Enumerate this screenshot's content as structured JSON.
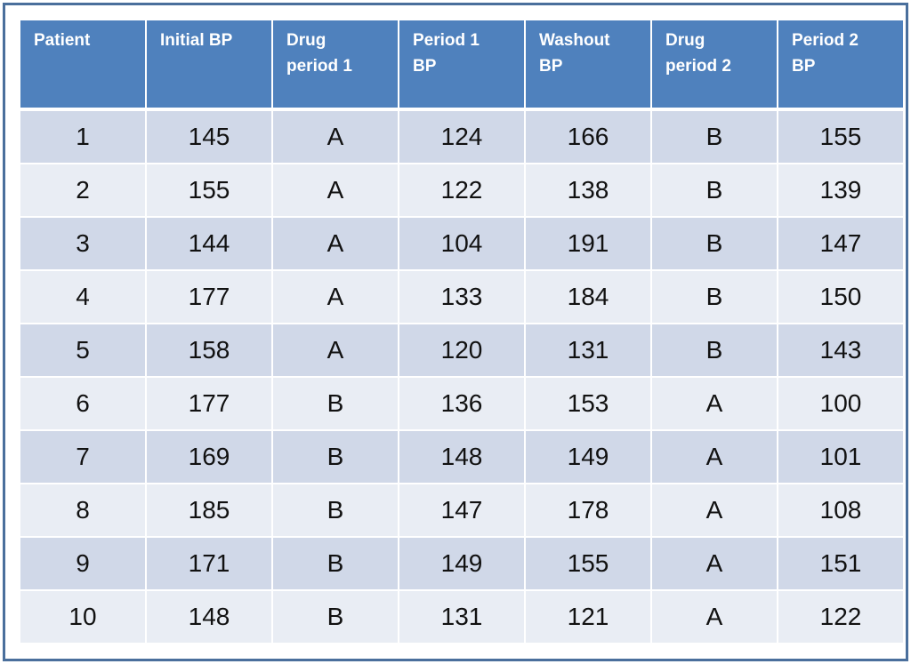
{
  "table": {
    "headers": [
      "Patient",
      "Initial BP",
      "Drug\nperiod 1",
      "Period 1\nBP",
      "Washout\nBP",
      "Drug\nperiod 2",
      "Period 2\nBP"
    ],
    "rows": [
      [
        "1",
        "145",
        "A",
        "124",
        "166",
        "B",
        "155"
      ],
      [
        "2",
        "155",
        "A",
        "122",
        "138",
        "B",
        "139"
      ],
      [
        "3",
        "144",
        "A",
        "104",
        "191",
        "B",
        "147"
      ],
      [
        "4",
        "177",
        "A",
        "133",
        "184",
        "B",
        "150"
      ],
      [
        "5",
        "158",
        "A",
        "120",
        "131",
        "B",
        "143"
      ],
      [
        "6",
        "177",
        "B",
        "136",
        "153",
        "A",
        "100"
      ],
      [
        "7",
        "169",
        "B",
        "148",
        "149",
        "A",
        "101"
      ],
      [
        "8",
        "185",
        "B",
        "147",
        "178",
        "A",
        "108"
      ],
      [
        "9",
        "171",
        "B",
        "149",
        "155",
        "A",
        "151"
      ],
      [
        "10",
        "148",
        "B",
        "131",
        "121",
        "A",
        "122"
      ]
    ]
  },
  "colors": {
    "header_bg": "#4f81bd",
    "row_odd_bg": "#d0d8e8",
    "row_even_bg": "#e9edf4",
    "frame_border": "#4a6f9c"
  }
}
